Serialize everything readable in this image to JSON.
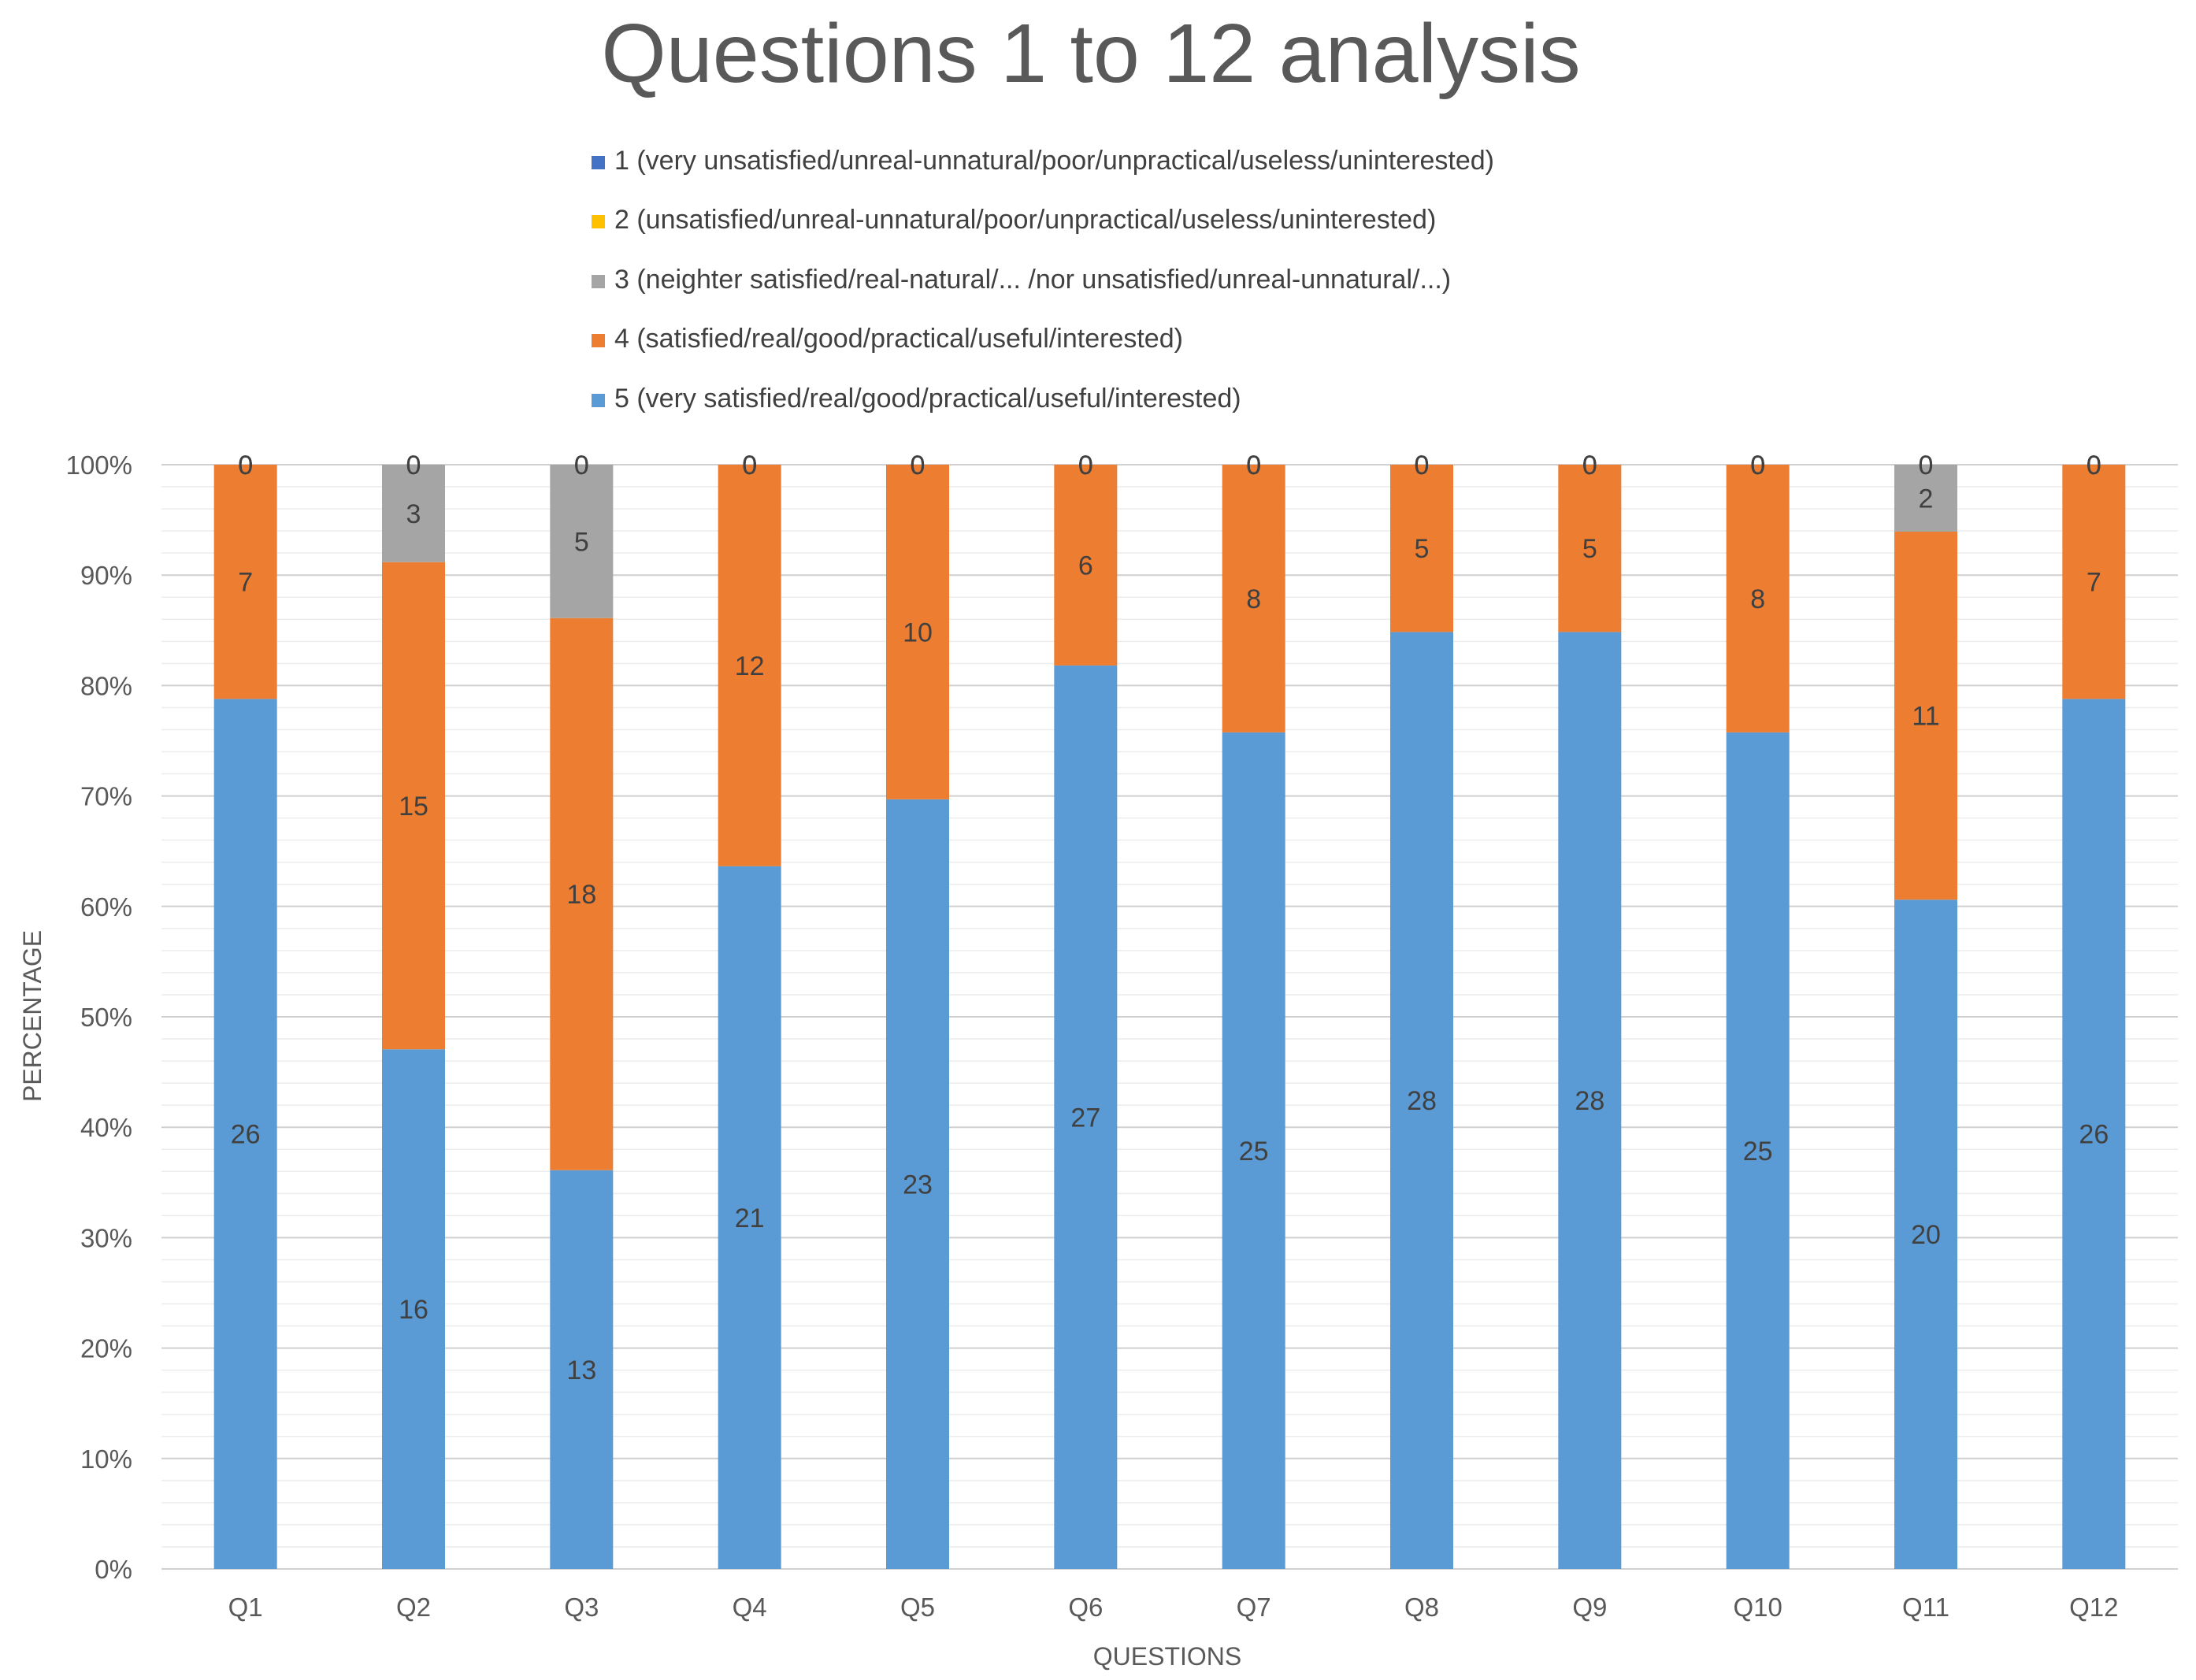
{
  "chart_data": {
    "type": "bar",
    "stacked": true,
    "normalized": true,
    "title": "Questions 1 to 12 analysis",
    "xlabel": "QUESTIONS",
    "ylabel": "PERCENTAGE",
    "ylim": [
      0,
      100
    ],
    "y_ticks": [
      "0%",
      "10%",
      "20%",
      "30%",
      "40%",
      "50%",
      "60%",
      "70%",
      "80%",
      "90%",
      "100%"
    ],
    "grid": true,
    "legend_position": "top",
    "categories": [
      "Q1",
      "Q2",
      "Q3",
      "Q4",
      "Q5",
      "Q6",
      "Q7",
      "Q8",
      "Q9",
      "Q10",
      "Q11",
      "Q12"
    ],
    "series": [
      {
        "key": "s5",
        "name": "5 (very satisfied/real/good/practical/useful/interested)",
        "color": "#5B9BD5",
        "values": [
          26,
          16,
          13,
          21,
          23,
          27,
          25,
          28,
          28,
          25,
          20,
          26
        ]
      },
      {
        "key": "s4",
        "name": "4 (satisfied/real/good/practical/useful/interested)",
        "color": "#ED7D31",
        "values": [
          7,
          15,
          18,
          12,
          10,
          6,
          8,
          5,
          5,
          8,
          11,
          7
        ]
      },
      {
        "key": "s3",
        "name": "3 (neighter satisfied/real-natural/... /nor unsatisfied/unreal-unnatural/...)",
        "color": "#A5A5A5",
        "values": [
          0,
          3,
          5,
          0,
          0,
          0,
          0,
          0,
          0,
          0,
          2,
          0
        ]
      },
      {
        "key": "s2",
        "name": "2 (unsatisfied/unreal-unnatural/poor/unpractical/useless/uninterested)",
        "color": "#FFC000",
        "values": [
          0,
          0,
          0,
          0,
          0,
          0,
          0,
          0,
          0,
          0,
          0,
          0
        ]
      },
      {
        "key": "s1",
        "name": "1 (very unsatisfied/unreal-unnatural/poor/unpractical/useless/uninterested)",
        "color": "#4472C4",
        "values": [
          0,
          0,
          0,
          0,
          0,
          0,
          0,
          0,
          0,
          0,
          0,
          0
        ]
      }
    ],
    "legend_order": [
      "s1",
      "s2",
      "s3",
      "s4",
      "s5"
    ]
  }
}
